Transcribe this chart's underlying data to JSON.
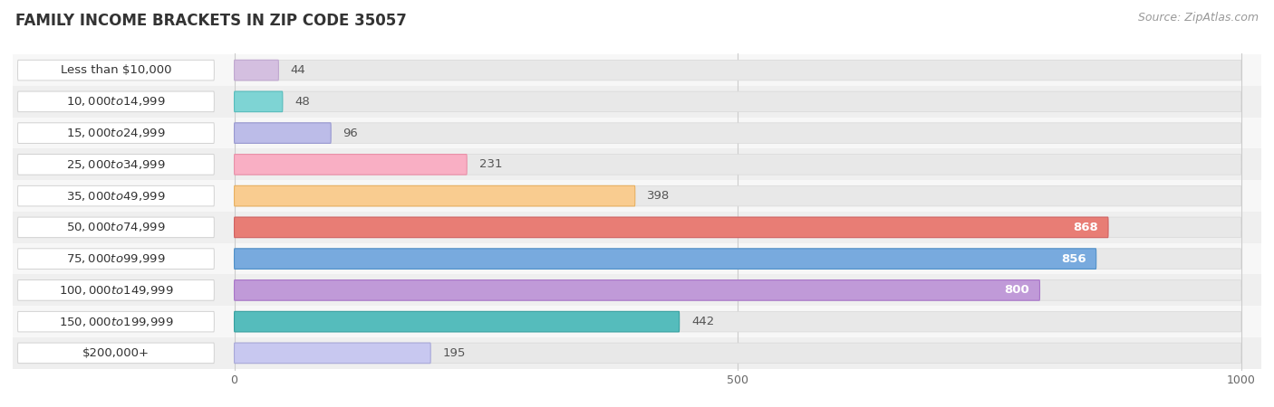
{
  "title": "FAMILY INCOME BRACKETS IN ZIP CODE 35057",
  "source": "Source: ZipAtlas.com",
  "categories": [
    "Less than $10,000",
    "$10,000 to $14,999",
    "$15,000 to $24,999",
    "$25,000 to $34,999",
    "$35,000 to $49,999",
    "$50,000 to $74,999",
    "$75,000 to $99,999",
    "$100,000 to $149,999",
    "$150,000 to $199,999",
    "$200,000+"
  ],
  "values": [
    44,
    48,
    96,
    231,
    398,
    868,
    856,
    800,
    442,
    195
  ],
  "bar_colors": [
    "#d4bfe0",
    "#7ed4d4",
    "#bcbce8",
    "#f9afc4",
    "#f9cc90",
    "#e87d75",
    "#78aade",
    "#c09ad8",
    "#55bcbc",
    "#c8c8f0"
  ],
  "bar_edge_colors": [
    "#c0a8d0",
    "#55bcbc",
    "#9898d0",
    "#e890a8",
    "#e8b060",
    "#d06060",
    "#5090c8",
    "#a875c8",
    "#35a0a0",
    "#a8a8d8"
  ],
  "value_threshold": 500,
  "xlim_left": -220,
  "xlim_right": 1020,
  "xticks": [
    0,
    500,
    1000
  ],
  "background_color": "#ffffff",
  "row_bg_color": "#f0f0f0",
  "bar_bg_color": "#e8e8e8",
  "title_fontsize": 12,
  "label_fontsize": 9.5,
  "value_fontsize": 9.5,
  "source_fontsize": 9,
  "bar_height": 0.65
}
